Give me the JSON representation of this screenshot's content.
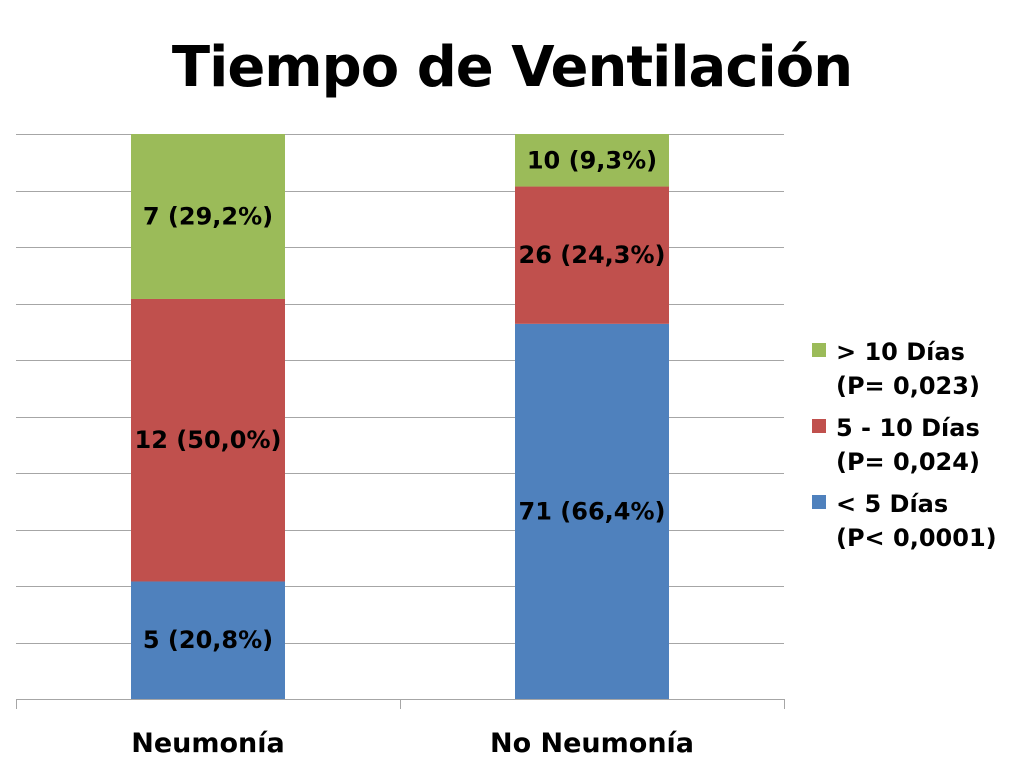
{
  "title": "Tiempo de Ventilación",
  "chart_data": {
    "type": "bar",
    "stacked": true,
    "percent_stacked": true,
    "title": "Tiempo de Ventilación",
    "categories": [
      "Neumonía",
      "No Neumonía"
    ],
    "series": [
      {
        "name": "< 5 Días (P< 0,0001)",
        "legend_lines": [
          "< 5 Días",
          "(P< 0,0001)"
        ],
        "color": "#4F81BD",
        "values": [
          20.8,
          66.4
        ],
        "labels": [
          "5 (20,8%)",
          "71 (66,4%)"
        ]
      },
      {
        "name": "5 - 10 Días (P= 0,024)",
        "legend_lines": [
          "5 - 10 Días",
          "(P= 0,024)"
        ],
        "color": "#C0504D",
        "values": [
          50.0,
          24.3
        ],
        "labels": [
          "12 (50,0%)",
          "26 (24,3%)"
        ]
      },
      {
        "name": "> 10 Días (P= 0,023)",
        "legend_lines": [
          "> 10 Días",
          "(P= 0,023)"
        ],
        "color": "#9BBB59",
        "values": [
          29.2,
          9.3
        ],
        "labels": [
          "7 (29,2%)",
          "10 (9,3%)"
        ]
      }
    ],
    "ylim": [
      0,
      100
    ],
    "grid": true,
    "legend_position": "right",
    "gridline_color": "#A6A6A6",
    "axis_color": "#A6A6A6"
  }
}
